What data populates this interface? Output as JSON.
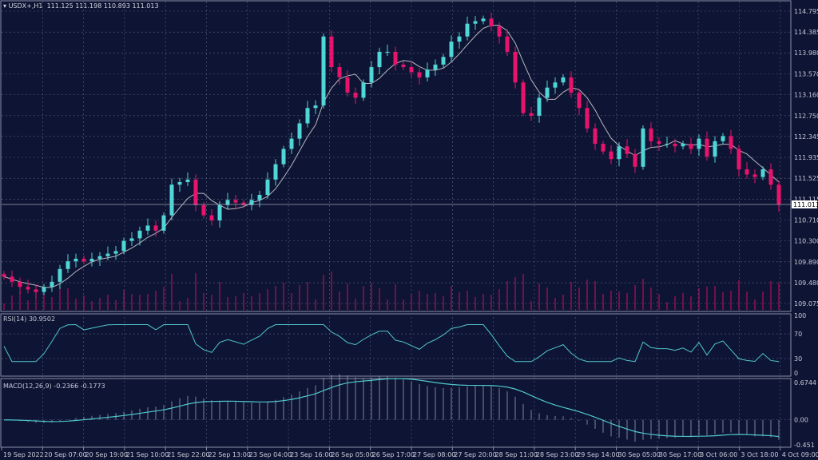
{
  "header": {
    "symbol": "USDX+,H1",
    "ohlc": "111.125 111.198 110.893 111.013"
  },
  "chart_data": {
    "type": "candlestick",
    "symbol": "USDX+,H1",
    "price_axis": [
      "114.795",
      "114.385",
      "113.980",
      "113.570",
      "113.160",
      "112.750",
      "112.345",
      "111.935",
      "111.525",
      "111.115",
      "110.710",
      "110.300",
      "109.890",
      "109.480",
      "109.075"
    ],
    "ylim": [
      109.075,
      114.795
    ],
    "last_price": "111.013",
    "time_labels": [
      "19 Sep 2022",
      "20 Sep 07:00",
      "20 Sep 19:00",
      "21 Sep 10:00",
      "21 Sep 22:00",
      "22 Sep 13:00",
      "23 Sep 04:00",
      "23 Sep 16:00",
      "26 Sep 05:00",
      "26 Sep 17:00",
      "27 Sep 08:00",
      "27 Sep 20:00",
      "28 Sep 11:00",
      "28 Sep 23:00",
      "29 Sep 14:00",
      "30 Sep 05:00",
      "30 Sep 17:00",
      "3 Oct 06:00",
      "3 Oct 18:00",
      "4 Oct 09:00"
    ],
    "closes": [
      109.6,
      109.5,
      109.4,
      109.35,
      109.3,
      109.4,
      109.5,
      109.75,
      109.9,
      109.95,
      109.9,
      109.95,
      110.0,
      110.05,
      110.1,
      110.3,
      110.35,
      110.5,
      110.6,
      110.5,
      110.8,
      111.4,
      111.45,
      111.5,
      111.0,
      110.8,
      110.7,
      111.0,
      111.1,
      111.05,
      111.0,
      111.1,
      111.2,
      111.5,
      111.8,
      112.1,
      112.3,
      112.6,
      112.9,
      112.95,
      114.3,
      113.7,
      113.5,
      113.2,
      113.1,
      113.4,
      113.7,
      114.0,
      114.0,
      113.75,
      113.7,
      113.6,
      113.5,
      113.65,
      113.75,
      113.9,
      114.2,
      114.3,
      114.55,
      114.6,
      114.65,
      114.5,
      114.3,
      114.0,
      113.4,
      112.8,
      112.75,
      113.1,
      113.3,
      113.4,
      113.5,
      113.2,
      112.9,
      112.5,
      112.2,
      112.05,
      111.9,
      112.15,
      112.0,
      111.75,
      112.5,
      112.25,
      112.2,
      112.2,
      112.15,
      112.2,
      112.1,
      112.3,
      111.95,
      112.25,
      112.35,
      112.1,
      111.7,
      111.6,
      111.55,
      111.7,
      111.4,
      111.013
    ],
    "rsi": {
      "label": "RSI(14) 30.9502",
      "levels": [
        "100",
        "70",
        "30",
        "0"
      ]
    },
    "macd": {
      "label": "MACD(12,26,9) -0.2366 -0.1773",
      "axis": [
        "0.6744",
        "0.00",
        "-0.451"
      ],
      "ylim": [
        -0.451,
        0.6744
      ]
    },
    "colors": {
      "bull": "#4fd6d6",
      "bear": "#e8146c",
      "background": "#0e1433",
      "grid": "#5a6080",
      "ma": "#b8b8c0",
      "rsi": "#4fc8cc",
      "macd": "#4fc8cc"
    }
  }
}
